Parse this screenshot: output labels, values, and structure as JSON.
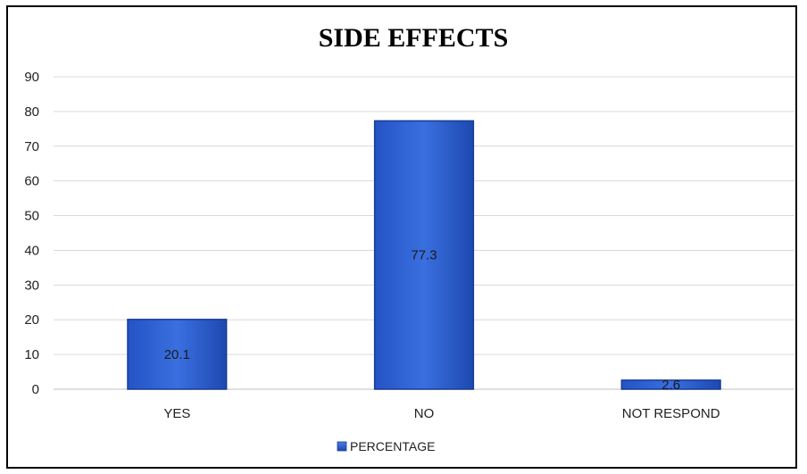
{
  "chart_data": {
    "type": "bar",
    "title": "SIDE EFFECTS",
    "categories": [
      "YES",
      "NO",
      "NOT RESPOND"
    ],
    "series": [
      {
        "name": "PERCENTAGE",
        "values": [
          20.1,
          77.3,
          2.6
        ]
      }
    ],
    "ylim": [
      0,
      90
    ],
    "yticks": [
      0,
      10,
      20,
      30,
      40,
      50,
      60,
      70,
      80,
      90
    ],
    "grid": true,
    "legend": "bottom",
    "colors": {
      "bar": "#2e5fd0",
      "bar_dark": "#163c95",
      "grid": "#d9d9d9"
    }
  }
}
